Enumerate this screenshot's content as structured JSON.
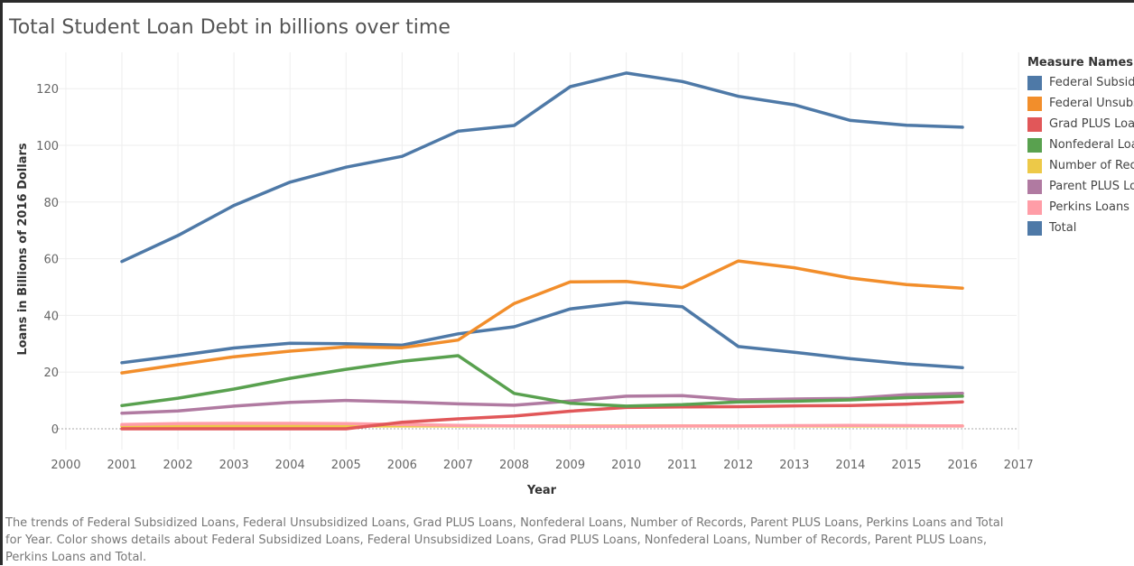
{
  "title": "Total Student Loan Debt in billions over time",
  "legend": {
    "title": "Measure Names",
    "items": [
      {
        "label": "Federal Subsidized Loans",
        "color": "#4e79a7"
      },
      {
        "label": "Federal Unsubsidized Loans",
        "color": "#f28e2b"
      },
      {
        "label": "Grad PLUS Loans",
        "color": "#e15759"
      },
      {
        "label": "Nonfederal Loans",
        "color": "#59a14f"
      },
      {
        "label": "Number of Records",
        "color": "#edc948"
      },
      {
        "label": "Parent PLUS Loans",
        "color": "#b07aa1"
      },
      {
        "label": "Perkins Loans",
        "color": "#ff9da7"
      },
      {
        "label": "Total",
        "color": "#4e79a7"
      }
    ]
  },
  "caption": "The trends of Federal Subsidized Loans, Federal Unsubsidized Loans, Grad PLUS Loans, Nonfederal Loans, Number of Records, Parent PLUS Loans, Perkins Loans and Total for Year.  Color shows details about Federal Subsidized Loans, Federal Unsubsidized Loans, Grad PLUS Loans, Nonfederal Loans, Number of Records, Parent PLUS Loans, Perkins Loans and Total.",
  "chart_data": {
    "type": "line",
    "title": "Total Student Loan Debt in billions over time",
    "xlabel": "Year",
    "ylabel": "Loans in Billions of 2016 Dollars",
    "xlim": [
      2000,
      2017
    ],
    "ylim": [
      -7,
      130
    ],
    "x_ticks": [
      2000,
      2001,
      2002,
      2003,
      2004,
      2005,
      2006,
      2007,
      2008,
      2009,
      2010,
      2011,
      2012,
      2013,
      2014,
      2015,
      2016,
      2017
    ],
    "y_ticks": [
      0,
      20,
      40,
      60,
      80,
      100,
      120
    ],
    "grid": true,
    "legend_position": "right",
    "x": [
      2001,
      2002,
      2003,
      2004,
      2005,
      2006,
      2007,
      2008,
      2009,
      2010,
      2011,
      2012,
      2013,
      2014,
      2015,
      2016
    ],
    "series": [
      {
        "name": "Number of Records",
        "color": "#edc948",
        "values": [
          1,
          1,
          1,
          1,
          1,
          1,
          1,
          1,
          1,
          1,
          1,
          1,
          1,
          1,
          1,
          1
        ]
      },
      {
        "name": "Perkins Loans",
        "color": "#ff9da7",
        "values": [
          1.5,
          1.8,
          1.9,
          1.9,
          1.8,
          1.5,
          1.2,
          1.0,
          0.9,
          0.9,
          1.0,
          1.0,
          1.1,
          1.2,
          1.1,
          1.0
        ]
      },
      {
        "name": "Grad PLUS Loans",
        "color": "#e15759",
        "values": [
          0,
          0,
          0,
          0,
          0,
          2.3,
          3.5,
          4.5,
          6.2,
          7.5,
          7.7,
          7.8,
          8.1,
          8.2,
          8.7,
          9.5
        ]
      },
      {
        "name": "Parent PLUS Loans",
        "color": "#b07aa1",
        "values": [
          5.5,
          6.3,
          8.0,
          9.3,
          10.0,
          9.5,
          8.8,
          8.3,
          9.8,
          11.5,
          11.7,
          10.2,
          10.5,
          10.7,
          12.0,
          12.5
        ]
      },
      {
        "name": "Nonfederal Loans",
        "color": "#59a14f",
        "values": [
          8.2,
          10.8,
          14.0,
          17.8,
          21.0,
          23.8,
          25.8,
          12.5,
          9.0,
          8.0,
          8.5,
          9.5,
          9.7,
          10.2,
          11.0,
          11.5
        ]
      },
      {
        "name": "Federal Subsidized Loans",
        "color": "#4e79a7",
        "values": [
          23.3,
          25.8,
          28.5,
          30.2,
          30.0,
          29.5,
          33.5,
          36.0,
          42.3,
          44.6,
          43.1,
          29.0,
          27.0,
          24.7,
          22.9,
          21.6
        ]
      },
      {
        "name": "Federal Unsubsidized Loans",
        "color": "#f28e2b",
        "values": [
          19.7,
          22.6,
          25.4,
          27.4,
          28.9,
          28.6,
          31.3,
          44.2,
          51.8,
          52.0,
          49.8,
          59.2,
          56.8,
          53.2,
          50.9,
          49.6
        ]
      },
      {
        "name": "Total",
        "color": "#4e79a7",
        "values": [
          59.0,
          68.2,
          78.8,
          87.0,
          92.3,
          96.1,
          105.0,
          107.0,
          120.7,
          125.5,
          122.5,
          117.3,
          114.3,
          108.8,
          107.1,
          106.4
        ]
      }
    ]
  }
}
